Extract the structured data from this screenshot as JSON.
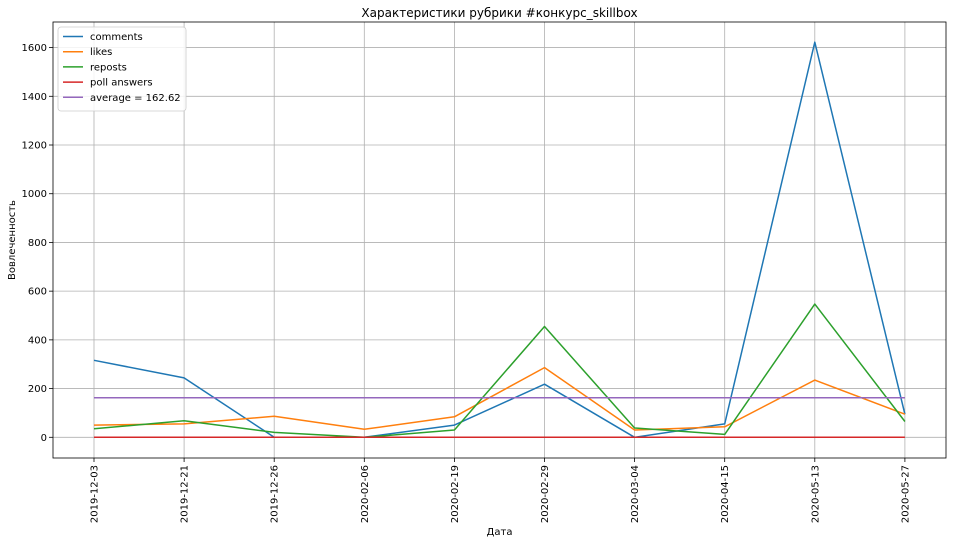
{
  "chart_data": {
    "type": "line",
    "title": "Характеристики рубрики #конкурс_skillbox",
    "xlabel": "Дата",
    "ylabel": "Вовлеченность",
    "categories": [
      "2019-12-03",
      "2019-12-21",
      "2019-12-26",
      "2020-02-06",
      "2020-02-19",
      "2020-02-29",
      "2020-03-04",
      "2020-04-15",
      "2020-05-13",
      "2020-05-27"
    ],
    "ylim": [
      -85,
      1705
    ],
    "yticks": [
      0,
      200,
      400,
      600,
      800,
      1000,
      1200,
      1400,
      1600
    ],
    "grid": true,
    "legend_position": "top-left",
    "series": [
      {
        "name": "comments",
        "color": "#1f77b4",
        "values": [
          316,
          244,
          0,
          0,
          50,
          218,
          0,
          55,
          1622,
          95
        ]
      },
      {
        "name": "likes",
        "color": "#ff7f0e",
        "values": [
          50,
          55,
          86,
          33,
          84,
          286,
          30,
          43,
          235,
          95
        ]
      },
      {
        "name": "reposts",
        "color": "#2ca02c",
        "values": [
          35,
          68,
          20,
          0,
          30,
          455,
          38,
          12,
          547,
          65
        ]
      },
      {
        "name": "poll answers",
        "color": "#d62728",
        "values": [
          0,
          0,
          0,
          0,
          0,
          0,
          0,
          0,
          0,
          0
        ]
      },
      {
        "name": "average = 162.62",
        "color": "#9467bd",
        "values": [
          162.62,
          162.62,
          162.62,
          162.62,
          162.62,
          162.62,
          162.62,
          162.62,
          162.62,
          162.62
        ]
      }
    ]
  }
}
